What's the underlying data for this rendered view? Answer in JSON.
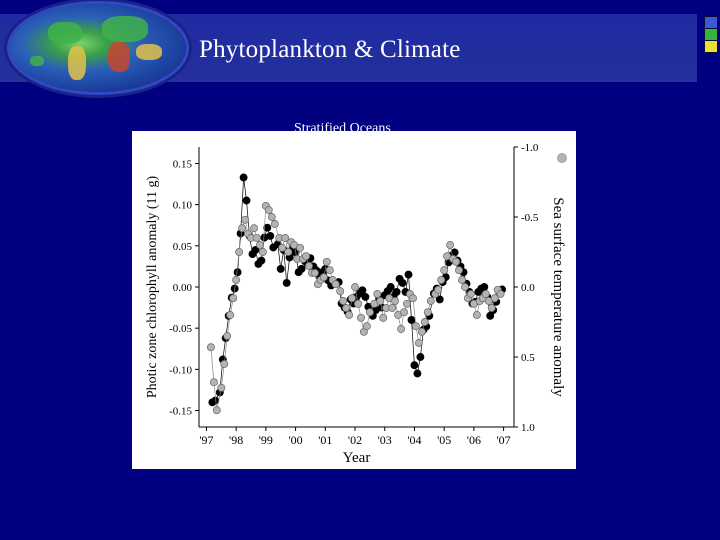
{
  "slide": {
    "title": "Phytoplankton & Climate",
    "subtitle": "Stratified Oceans"
  },
  "colors": {
    "background": "#000080",
    "title_bar": "#2230a0",
    "chlorophyll_marker": "#000000",
    "sst_marker": "#b3b3b3"
  },
  "icons": [
    "globe-icon",
    "color-squares-icon"
  ],
  "chart_data": {
    "type": "scatter",
    "title": "",
    "xlabel": "Year",
    "ylabel": "Photic zone chlorophyll anomaly (11 g)",
    "y2label": "Sea surface temperature anomaly",
    "x_ticks": [
      "'97",
      "'98",
      "'99",
      "'00",
      "'01",
      "'02",
      "'03",
      "'04",
      "'05",
      "'06",
      "'07"
    ],
    "y_ticks": [
      "0.15",
      "0.10",
      "0.05",
      "0.00",
      "-0.05",
      "-0.10",
      "-0.15"
    ],
    "y2_ticks": [
      "-1.0",
      "-0.5",
      "0.0",
      "0.5",
      "1.0"
    ],
    "xlim": [
      1996.75,
      2007.35
    ],
    "ylim": [
      -0.17,
      0.17
    ],
    "y2lim": [
      1.0,
      -1.0
    ],
    "y2_inverted": true,
    "series": [
      {
        "axis": "left",
        "x": [
          1997.2,
          1997.3,
          1997.45,
          1997.55,
          1997.65,
          1997.75,
          1997.85,
          1997.95,
          1998.05,
          1998.15,
          1998.25,
          1998.35,
          1998.45,
          1998.55,
          1998.65,
          1998.75,
          1998.85,
          1998.95,
          1999.05,
          1999.15,
          1999.25,
          1999.4,
          1999.5,
          1999.6,
          1999.7,
          1999.8,
          1999.9,
          2000.0,
          2000.1,
          2000.2,
          2000.3,
          2000.4,
          2000.5,
          2000.6,
          2000.7,
          2000.8,
          2000.9,
          2001.0,
          2001.1,
          2001.2,
          2001.3,
          2001.45,
          2001.55,
          2001.65,
          2001.75,
          2001.85,
          2001.95,
          2002.05,
          2002.15,
          2002.25,
          2002.35,
          2002.45,
          2002.6,
          2002.7,
          2002.8,
          2002.9,
          2003.0,
          2003.1,
          2003.2,
          2003.3,
          2003.4,
          2003.5,
          2003.6,
          2003.7,
          2003.8,
          2003.9,
          2004.0,
          2004.1,
          2004.2,
          2004.3,
          2004.4,
          2004.5,
          2004.65,
          2004.75,
          2004.85,
          2004.95,
          2005.05,
          2005.15,
          2005.25,
          2005.35,
          2005.45,
          2005.55,
          2005.65,
          2005.75,
          2005.85,
          2005.95,
          2006.05,
          2006.15,
          2006.25,
          2006.35,
          2006.45,
          2006.55,
          2006.65,
          2006.75,
          2006.85,
          2006.95
        ],
        "y": [
          -0.14,
          -0.138,
          -0.128,
          -0.088,
          -0.062,
          -0.035,
          -0.013,
          -0.002,
          0.018,
          0.065,
          0.133,
          0.105,
          0.062,
          0.04,
          0.045,
          0.028,
          0.032,
          0.06,
          0.072,
          0.062,
          0.048,
          0.052,
          0.022,
          0.045,
          0.005,
          0.036,
          0.048,
          0.042,
          0.018,
          0.022,
          0.032,
          0.028,
          0.035,
          0.025,
          0.02,
          0.012,
          0.018,
          0.022,
          0.008,
          0.002,
          0.005,
          0.006,
          -0.02,
          -0.025,
          -0.03,
          -0.015,
          -0.02,
          -0.012,
          -0.008,
          -0.004,
          -0.012,
          -0.024,
          -0.035,
          -0.028,
          -0.015,
          -0.025,
          -0.01,
          -0.005,
          0.0,
          -0.012,
          -0.006,
          0.01,
          0.005,
          -0.006,
          0.015,
          -0.04,
          -0.095,
          -0.105,
          -0.085,
          -0.052,
          -0.048,
          -0.035,
          -0.008,
          -0.002,
          -0.015,
          0.006,
          0.012,
          0.03,
          0.038,
          0.042,
          0.032,
          0.025,
          0.018,
          0.004,
          -0.006,
          -0.02,
          -0.018,
          -0.006,
          -0.002,
          0.0,
          -0.012,
          -0.035,
          -0.028,
          -0.018,
          -0.006,
          -0.003
        ],
        "marker": "filled-black"
      },
      {
        "axis": "right",
        "x": [
          1997.15,
          1997.25,
          1997.35,
          1997.5,
          1997.6,
          1997.7,
          1997.8,
          1997.9,
          1998.0,
          1998.1,
          1998.2,
          1998.3,
          1998.4,
          1998.5,
          1998.6,
          1998.7,
          1998.8,
          1998.9,
          1999.0,
          1999.1,
          1999.2,
          1999.3,
          1999.45,
          1999.55,
          1999.65,
          1999.75,
          1999.85,
          1999.95,
          2000.05,
          2000.15,
          2000.25,
          2000.35,
          2000.45,
          2000.55,
          2000.65,
          2000.75,
          2000.85,
          2000.95,
          2001.05,
          2001.15,
          2001.25,
          2001.35,
          2001.5,
          2001.6,
          2001.7,
          2001.8,
          2001.9,
          2002.0,
          2002.1,
          2002.2,
          2002.3,
          2002.4,
          2002.5,
          2002.65,
          2002.75,
          2002.85,
          2002.95,
          2003.05,
          2003.15,
          2003.25,
          2003.35,
          2003.45,
          2003.55,
          2003.65,
          2003.75,
          2003.85,
          2003.95,
          2004.05,
          2004.15,
          2004.25,
          2004.35,
          2004.45,
          2004.55,
          2004.7,
          2004.8,
          2004.9,
          2005.0,
          2005.1,
          2005.2,
          2005.3,
          2005.4,
          2005.5,
          2005.6,
          2005.7,
          2005.8,
          2005.9,
          2006.0,
          2006.1,
          2006.2,
          2006.3,
          2006.4,
          2006.5,
          2006.6,
          2006.7,
          2006.8,
          2006.9
        ],
        "y": [
          0.43,
          0.68,
          0.88,
          0.72,
          0.55,
          0.35,
          0.2,
          0.08,
          -0.05,
          -0.25,
          -0.42,
          -0.48,
          -0.38,
          -0.35,
          -0.42,
          -0.35,
          -0.3,
          -0.25,
          -0.58,
          -0.55,
          -0.5,
          -0.45,
          -0.35,
          -0.28,
          -0.35,
          -0.25,
          -0.32,
          -0.3,
          -0.2,
          -0.28,
          -0.2,
          -0.22,
          -0.15,
          -0.1,
          -0.1,
          -0.02,
          -0.05,
          -0.07,
          -0.18,
          -0.12,
          -0.05,
          -0.02,
          0.03,
          0.1,
          0.15,
          0.2,
          0.08,
          0.0,
          0.12,
          0.22,
          0.32,
          0.28,
          0.18,
          0.12,
          0.05,
          0.1,
          0.22,
          0.15,
          0.08,
          0.15,
          0.1,
          0.2,
          0.3,
          0.18,
          0.12,
          0.05,
          0.08,
          0.28,
          0.4,
          0.32,
          0.25,
          0.18,
          0.1,
          0.05,
          0.02,
          -0.05,
          -0.12,
          -0.22,
          -0.3,
          -0.2,
          -0.18,
          -0.12,
          -0.05,
          0.0,
          0.08,
          0.05,
          0.12,
          0.2,
          0.1,
          0.08,
          0.05,
          0.1,
          0.15,
          0.08,
          0.02,
          0.05
        ],
        "marker": "filled-gray"
      }
    ],
    "legend_markers": [
      "filled-gray"
    ],
    "grid": false,
    "legend": "top-right"
  }
}
